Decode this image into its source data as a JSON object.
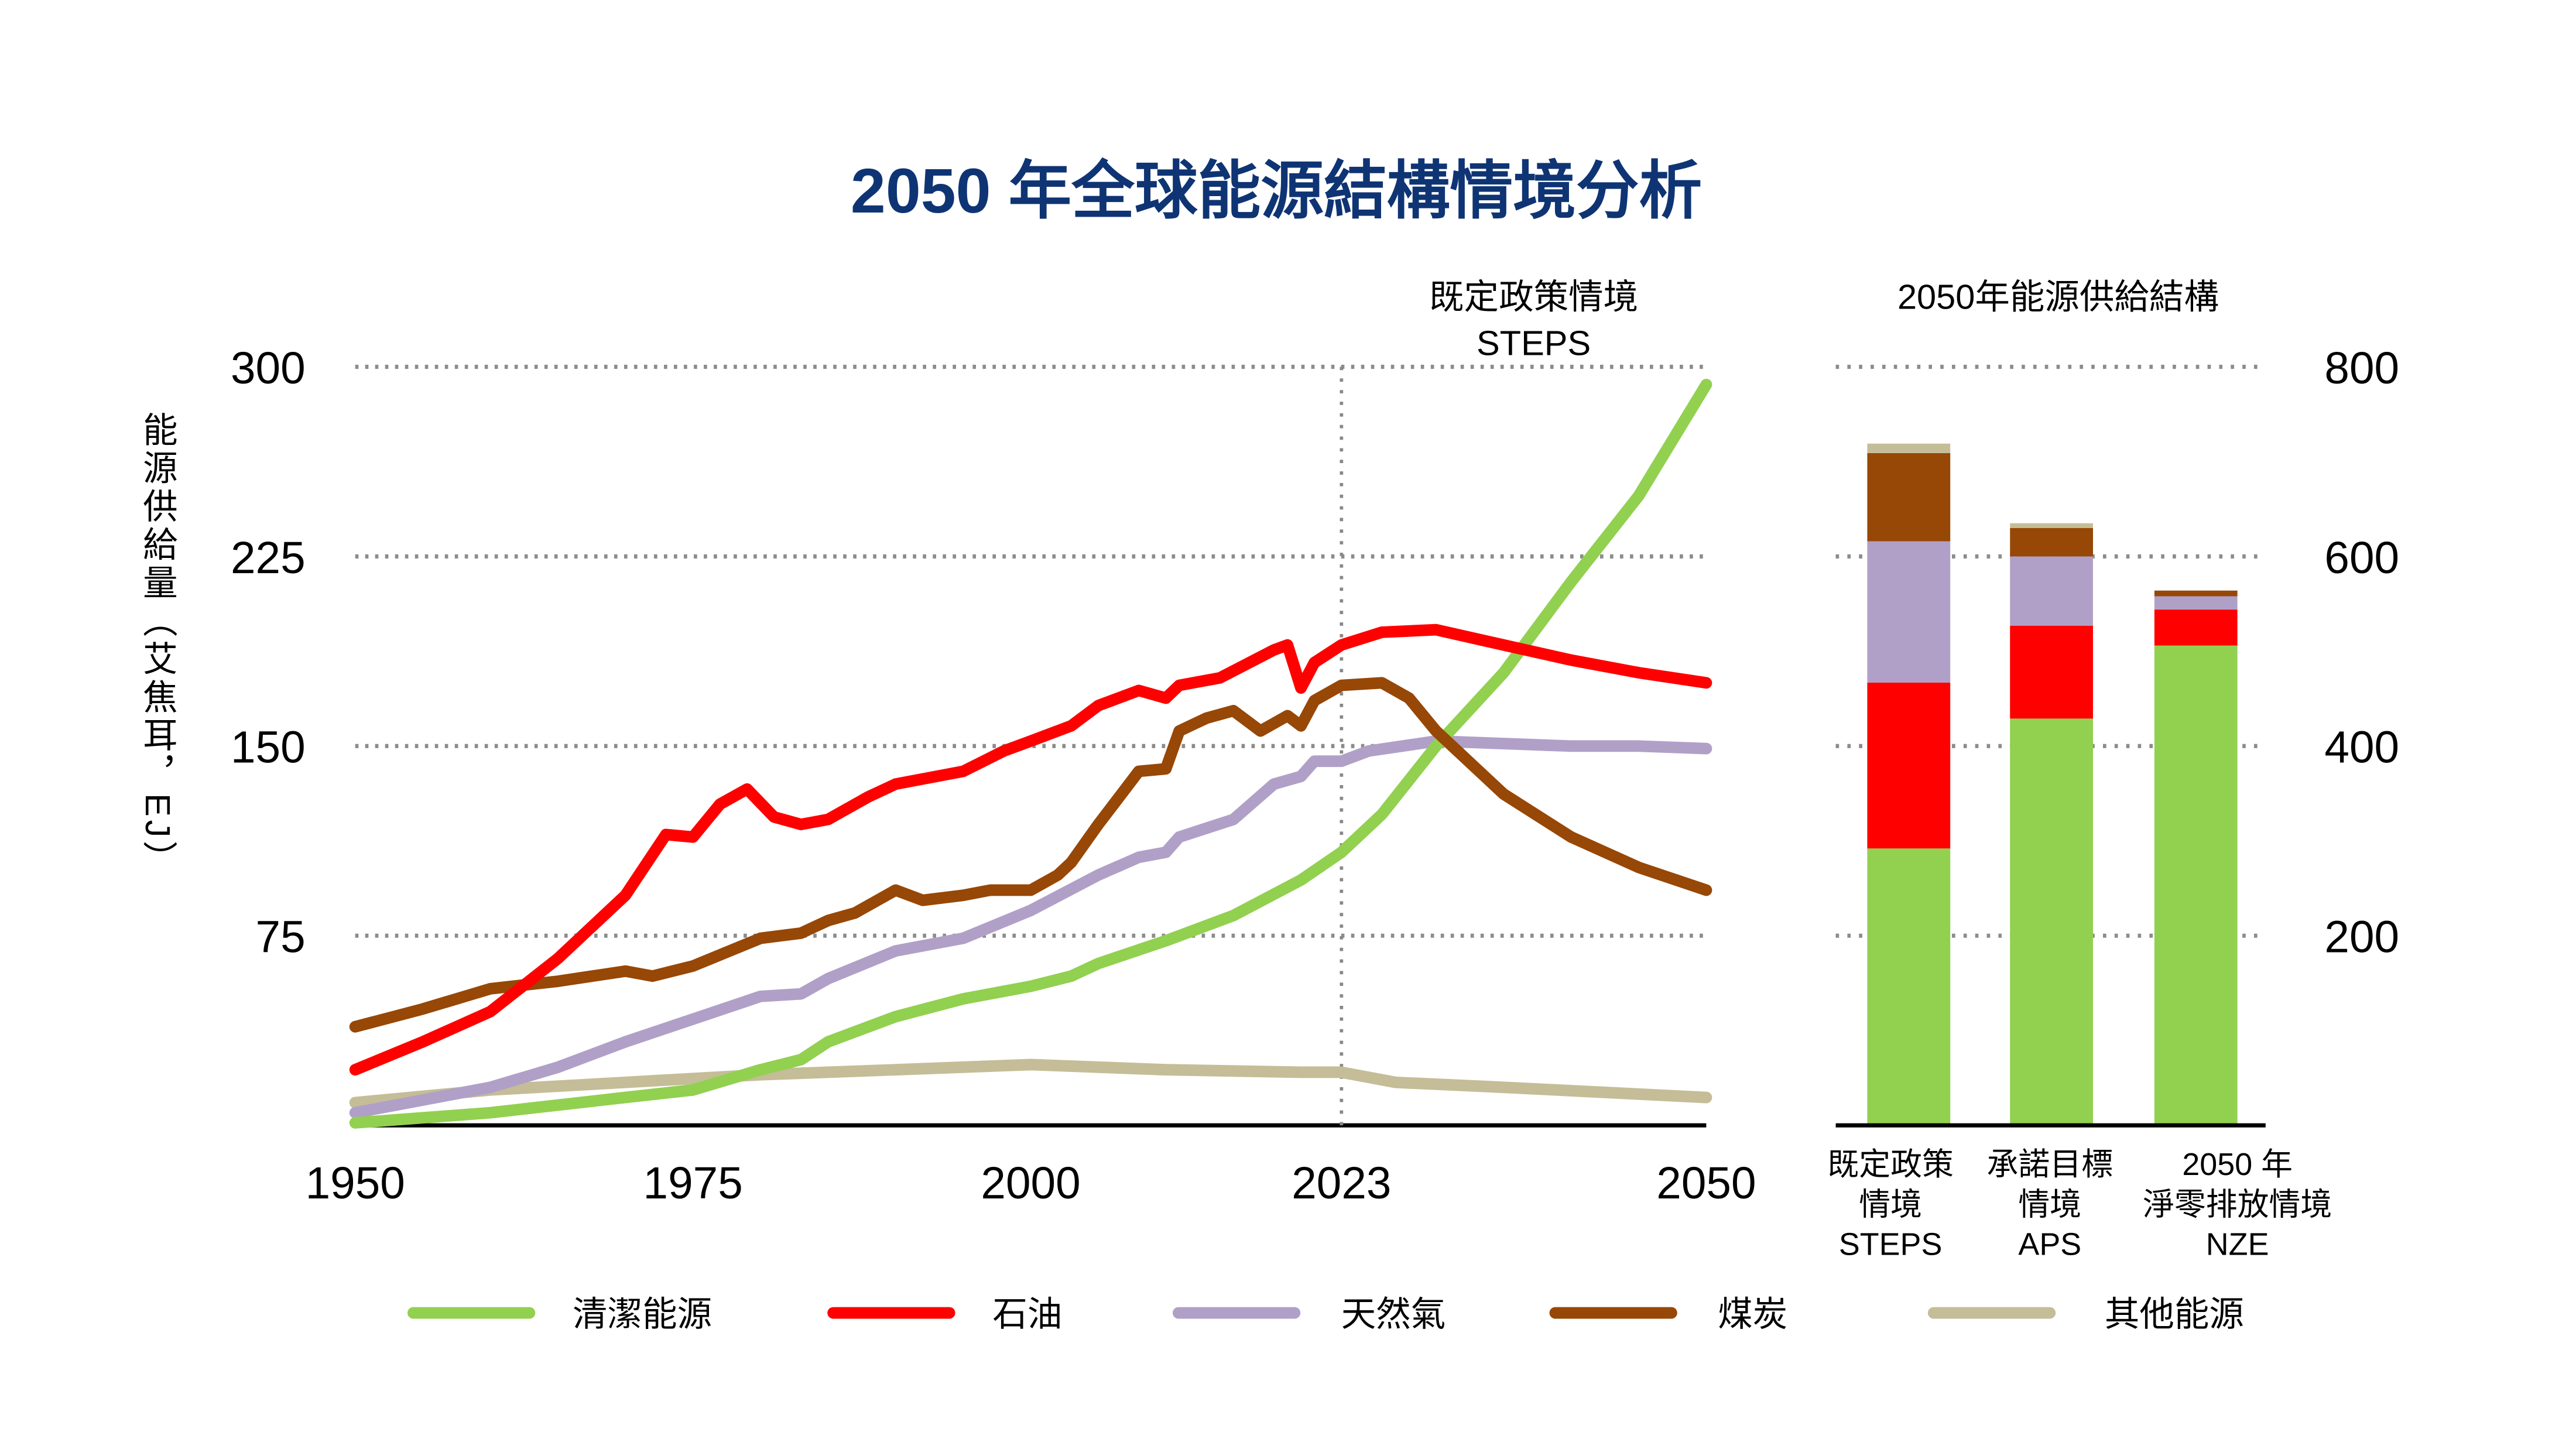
{
  "chart_data": [
    {
      "type": "line",
      "title": "2050 年全球能源結構情境分析",
      "ylabel": "能源供給量（艾焦耳，EJ）",
      "xlabel": "",
      "xlim": [
        1950,
        2050
      ],
      "ylim": [
        0,
        300
      ],
      "x_ticks": [
        "1950",
        "1975",
        "2000",
        "2023",
        "2050"
      ],
      "x_tick_values": [
        1950,
        1975,
        2000,
        2023,
        2050
      ],
      "y_ticks": [
        "300",
        "225",
        "150",
        "75"
      ],
      "y_tick_values": [
        300,
        225,
        150,
        75
      ],
      "grid": "horizontal dotted",
      "annotation": {
        "line1": "既定政策情境",
        "line2": "STEPS",
        "x": 2023
      },
      "legend_position": "bottom",
      "series": [
        {
          "name": "清潔能源",
          "color": "#92d050",
          "x": [
            1950,
            1960,
            1970,
            1975,
            1980,
            1983,
            1985,
            1990,
            1995,
            2000,
            2003,
            2005,
            2010,
            2015,
            2020,
            2023,
            2026,
            2030,
            2035,
            2040,
            2045,
            2050
          ],
          "y": [
            1,
            5,
            11,
            14,
            22,
            26,
            33,
            43,
            50,
            55,
            59,
            64,
            73,
            83,
            97,
            108,
            123,
            150,
            179,
            215,
            249,
            293
          ]
        },
        {
          "name": "石油",
          "color": "#ff0000",
          "x": [
            1950,
            1955,
            1960,
            1965,
            1970,
            1973,
            1975,
            1977,
            1979,
            1981,
            1983,
            1985,
            1988,
            1990,
            1995,
            1998,
            2000,
            2003,
            2005,
            2008,
            2010,
            2011,
            2014,
            2018,
            2019,
            2020,
            2021,
            2023,
            2026,
            2030,
            2035,
            2040,
            2045,
            2050
          ],
          "y": [
            22,
            33,
            45,
            66,
            91,
            115,
            114,
            127,
            133,
            122,
            119,
            121,
            130,
            135,
            140,
            148,
            152,
            158,
            166,
            172,
            169,
            174,
            177,
            188,
            190,
            173,
            183,
            190,
            195,
            196,
            190,
            184,
            179,
            175
          ]
        },
        {
          "name": "天然氣",
          "color": "#b0a0c8",
          "x": [
            1950,
            1960,
            1965,
            1970,
            1975,
            1980,
            1983,
            1985,
            1990,
            1995,
            2000,
            2005,
            2008,
            2010,
            2011,
            2015,
            2018,
            2020,
            2021,
            2023,
            2025,
            2030,
            2035,
            2040,
            2045,
            2050
          ],
          "y": [
            5,
            15,
            23,
            33,
            42,
            51,
            52,
            58,
            69,
            74,
            85,
            99,
            106,
            108,
            114,
            121,
            135,
            138,
            144,
            144,
            148,
            152,
            151,
            150,
            150,
            149
          ]
        },
        {
          "name": "煤炭",
          "color": "#974706",
          "x": [
            1950,
            1955,
            1960,
            1965,
            1970,
            1972,
            1975,
            1980,
            1983,
            1985,
            1987,
            1990,
            1992,
            1995,
            1997,
            2000,
            2002,
            2003,
            2005,
            2008,
            2010,
            2011,
            2013,
            2015,
            2017,
            2019,
            2020,
            2021,
            2023,
            2026,
            2028,
            2030,
            2035,
            2040,
            2045,
            2050
          ],
          "y": [
            39,
            46,
            54,
            57,
            61,
            59,
            63,
            74,
            76,
            81,
            84,
            93,
            89,
            91,
            93,
            93,
            99,
            104,
            119,
            140,
            141,
            156,
            161,
            164,
            156,
            162,
            158,
            168,
            174,
            175,
            169,
            156,
            131,
            114,
            102,
            93
          ]
        },
        {
          "name": "其他能源",
          "color": "#c4bd97",
          "x": [
            1950,
            1960,
            1970,
            1980,
            1990,
            2000,
            2010,
            2020,
            2023,
            2027,
            2035,
            2050
          ],
          "y": [
            9,
            14,
            17,
            20,
            22,
            24,
            22,
            21,
            21,
            17,
            15,
            11
          ]
        }
      ]
    },
    {
      "type": "stacked-bar",
      "title": "2050年能源供給結構",
      "ylim": [
        0,
        800
      ],
      "y_ticks": [
        "800",
        "600",
        "400",
        "200"
      ],
      "y_tick_values": [
        800,
        600,
        400,
        200
      ],
      "y_axis_position": "right",
      "categories": [
        {
          "line1": "既定政策",
          "line2": "情境",
          "line3": "STEPS"
        },
        {
          "line1": "承諾目標",
          "line2": "情境",
          "line3": "APS"
        },
        {
          "line1": "2050 年",
          "line2": "淨零排放情境",
          "line3": "NZE"
        }
      ],
      "series": [
        {
          "name": "清潔能源",
          "color": "#92d050",
          "values": [
            292,
            429,
            506
          ]
        },
        {
          "name": "石油",
          "color": "#ff0000",
          "values": [
            175,
            98,
            38
          ]
        },
        {
          "name": "天然氣",
          "color": "#b0a0c8",
          "values": [
            149,
            73,
            14
          ]
        },
        {
          "name": "煤炭",
          "color": "#974706",
          "values": [
            93,
            30,
            6
          ]
        },
        {
          "name": "其他能源",
          "color": "#c4bd97",
          "values": [
            10,
            5,
            0
          ]
        }
      ]
    }
  ]
}
